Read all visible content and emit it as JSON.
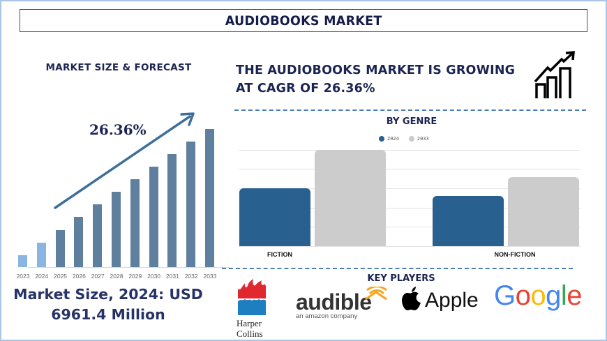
{
  "header": {
    "title": "AUDIOBOOKS MARKET"
  },
  "left_panel": {
    "title": "MARKET SIZE & FORECAST",
    "cagr_label": "26.36%",
    "market_size_line1": "Market Size, 2024: USD",
    "market_size_line2": "6961.4 Million"
  },
  "right_panel": {
    "headline_line1": "THE AUDIOBOOKS MARKET IS GROWING",
    "headline_line2": "AT CAGR OF 26.36%",
    "growth_icon": "growth-chart-icon",
    "genre_title": "BY GENRE",
    "key_players_title": "KEY PLAYERS",
    "key_players": [
      {
        "name": "HarperCollins",
        "line1": "Harper",
        "line2": "Collins"
      },
      {
        "name": "audible",
        "sub": "an amazon company"
      },
      {
        "name": "Apple"
      },
      {
        "name": "Google"
      }
    ]
  },
  "colors": {
    "title_navy": "#141c4a",
    "bar_forecast": "#5f7f9e",
    "bar_historic": "#8ab5e0",
    "genre_2024": "#28608f",
    "genre_2033": "#cccccc",
    "dash_blue": "#4a7cb5",
    "border": "#a9c6e6"
  },
  "chart_data": [
    {
      "type": "bar",
      "title": "MARKET SIZE & FORECAST",
      "categories": [
        "2023",
        "2024",
        "2025",
        "2026",
        "2027",
        "2028",
        "2029",
        "2030",
        "2031",
        "2032",
        "2033"
      ],
      "values": [
        17,
        35,
        53,
        72,
        90,
        108,
        126,
        144,
        162,
        180,
        198
      ],
      "value_units": "relative bar height (px, unlabeled axis)",
      "historic_categories": [
        "2023",
        "2024"
      ],
      "forecast_categories": [
        "2025",
        "2026",
        "2027",
        "2028",
        "2029",
        "2030",
        "2031",
        "2032",
        "2033"
      ],
      "annotation": "26.36%",
      "xlabel": "",
      "ylabel": "",
      "grid": false
    },
    {
      "type": "bar",
      "title": "BY GENRE",
      "categories": [
        "FICTION",
        "NON-FICTION"
      ],
      "series": [
        {
          "name": "2024",
          "values": [
            83,
            72
          ]
        },
        {
          "name": "2033",
          "values": [
            138,
            99
          ]
        }
      ],
      "value_units": "relative bar height (unlabeled axis)",
      "legend_position": "top",
      "grid": true,
      "xlabel": "",
      "ylabel": ""
    }
  ]
}
